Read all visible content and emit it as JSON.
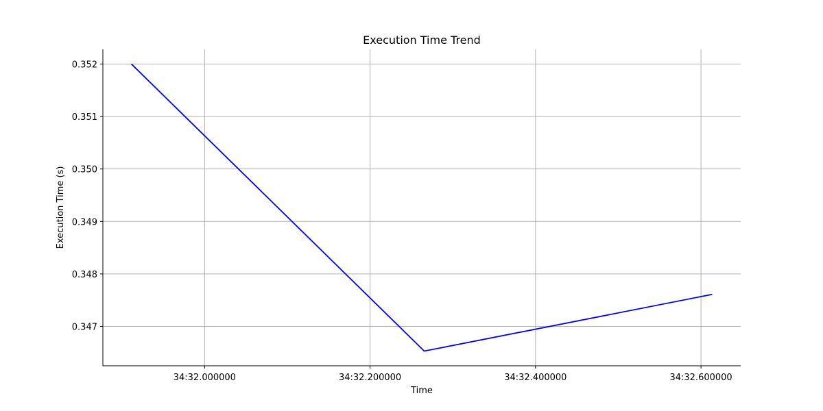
{
  "chart_data": {
    "type": "line",
    "title": "Execution Time Trend",
    "xlabel": "Time",
    "ylabel": "Execution Time (s)",
    "x_tick_labels": [
      "34:32.000000",
      "34:32.200000",
      "34:32.400000",
      "34:32.600000"
    ],
    "x_ticks": [
      32.0,
      32.2,
      32.4,
      32.6
    ],
    "y_ticks": [
      0.347,
      0.348,
      0.349,
      0.35,
      0.351,
      0.352
    ],
    "y_tick_labels": [
      "0.347",
      "0.348",
      "0.349",
      "0.350",
      "0.351",
      "0.352"
    ],
    "xlim": [
      31.877,
      32.648
    ],
    "ylim": [
      0.34625,
      0.35228
    ],
    "grid": true,
    "series": [
      {
        "color": "#0000ff",
        "x": [
          31.9115,
          32.2655,
          32.6135
        ],
        "y": [
          0.352,
          0.34653,
          0.34761
        ]
      }
    ]
  }
}
